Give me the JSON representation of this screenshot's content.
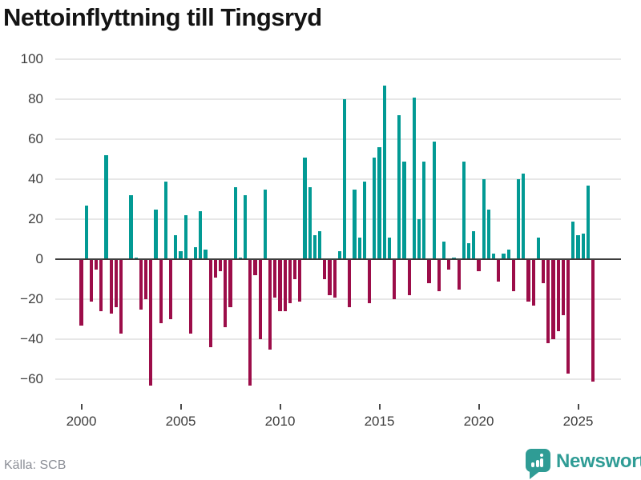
{
  "title": "Nettoinflyttning till Tingsryd",
  "source": {
    "text": "Källa: SCB"
  },
  "brand": {
    "name": "Newsworthy",
    "icon": "speech-bubble-bar-chart-icon"
  },
  "colors": {
    "positive": "#029a94",
    "negative": "#9c0d49",
    "grid": "#e7e7e7",
    "axis": "#3d3d3d",
    "tick_label": "#3d3d3d",
    "title": "#141414",
    "source": "#8b8e96",
    "brand": "#2f9c95"
  },
  "chart_data": {
    "type": "bar",
    "title": "Nettoinflyttning till Tingsryd",
    "xlabel": "",
    "ylabel": "",
    "frequency": "quarterly",
    "start": "2000-Q1",
    "end": "2025-Q4",
    "ylim": [
      -66,
      104
    ],
    "yticks": [
      100,
      80,
      60,
      40,
      20,
      0,
      -20,
      -40,
      -60
    ],
    "xticks": [
      2000,
      2005,
      2010,
      2015,
      2020,
      2025
    ],
    "grid": true,
    "legend": false,
    "values": [
      -33,
      27,
      -21,
      -5,
      -26,
      52,
      -27,
      -24,
      -37,
      0,
      32,
      1,
      -25,
      -20,
      -63,
      25,
      -32,
      39,
      -30,
      12,
      4,
      22,
      -37,
      6,
      24,
      5,
      -44,
      -9,
      -6,
      -34,
      -24,
      36,
      1,
      32,
      -63,
      -8,
      -40,
      35,
      -45,
      -19,
      -26,
      -26,
      -22,
      -10,
      -21,
      51,
      36,
      12,
      14,
      -10,
      -18,
      -19,
      4,
      80,
      -24,
      35,
      11,
      39,
      -22,
      51,
      56,
      87,
      11,
      -20,
      72,
      49,
      -18,
      81,
      20,
      49,
      -12,
      59,
      -16,
      9,
      -5,
      1,
      -15,
      49,
      8,
      14,
      -6,
      40,
      25,
      3,
      -11,
      3,
      5,
      -16,
      40,
      43,
      -21,
      -23,
      11,
      -12,
      -42,
      -40,
      -36,
      -28,
      -57,
      19,
      12,
      13,
      37,
      -61
    ]
  }
}
